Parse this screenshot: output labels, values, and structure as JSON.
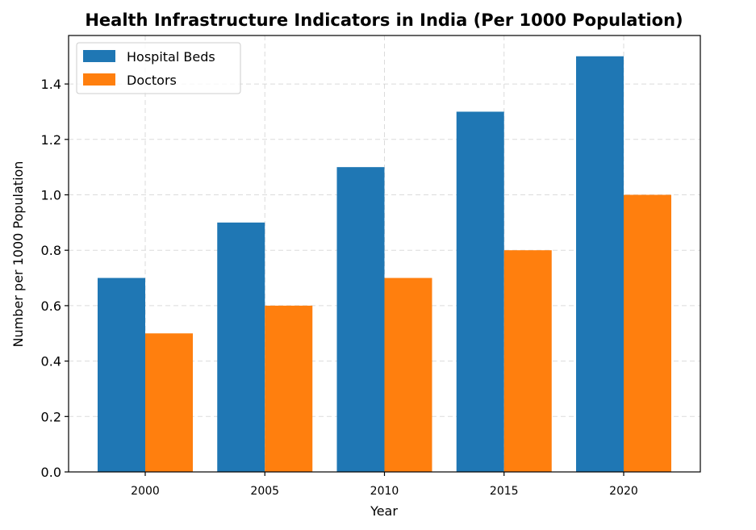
{
  "chart_data": {
    "type": "bar",
    "title": "Health Infrastructure Indicators in India (Per 1000 Population)",
    "xlabel": "Year",
    "ylabel": "Number per 1000 Population",
    "categories": [
      "2000",
      "2005",
      "2010",
      "2015",
      "2020"
    ],
    "series": [
      {
        "name": "Hospital Beds",
        "color": "#1f77b4",
        "values": [
          0.7,
          0.9,
          1.1,
          1.3,
          1.5
        ]
      },
      {
        "name": "Doctors",
        "color": "#ff7f0e",
        "values": [
          0.5,
          0.6,
          0.7,
          0.8,
          1.0
        ]
      }
    ],
    "ylim": [
      0,
      1.575
    ],
    "yticks": [
      "0.0",
      "0.2",
      "0.4",
      "0.6",
      "0.8",
      "1.0",
      "1.2",
      "1.4"
    ],
    "grid": true,
    "legend_position": "top-left"
  }
}
